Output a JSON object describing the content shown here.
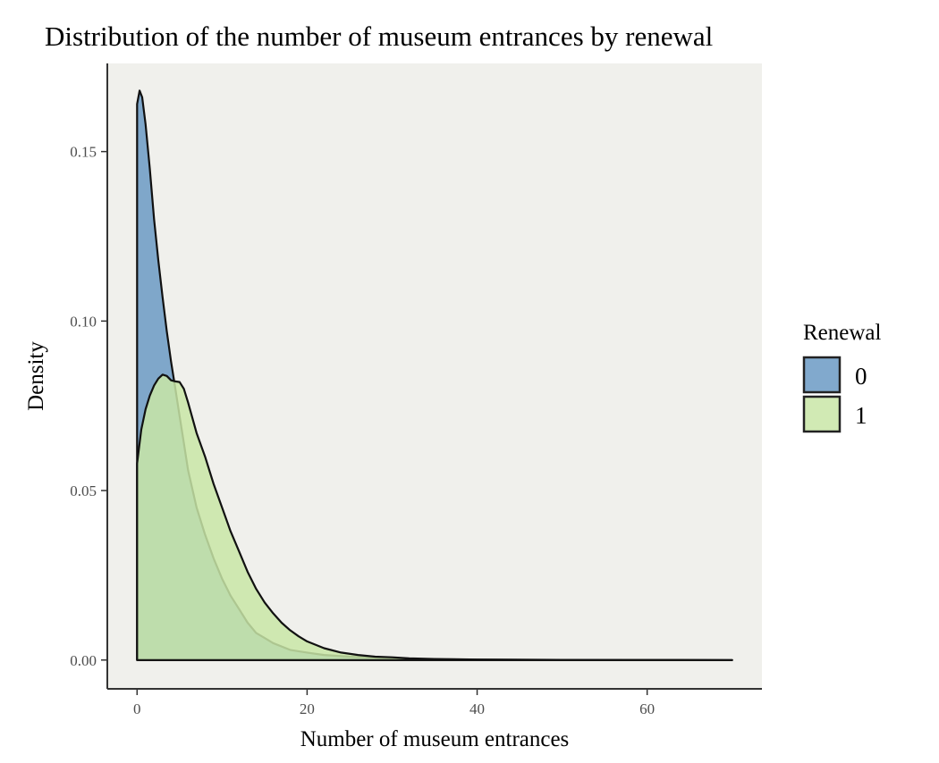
{
  "chart_data": {
    "type": "area",
    "subtype": "density",
    "title": "Distribution of the number of museum entrances by renewal",
    "xlabel": "Number of museum entrances",
    "ylabel": "Density",
    "xlim": [
      -3.5,
      73.5
    ],
    "ylim": [
      -0.0085,
      0.176
    ],
    "x_ticks": [
      0,
      20,
      40,
      60
    ],
    "x_tick_labels": [
      "0",
      "20",
      "40",
      "60"
    ],
    "y_ticks": [
      0.0,
      0.05,
      0.1,
      0.15
    ],
    "y_tick_labels": [
      "0.00",
      "0.05",
      "0.10",
      "0.15"
    ],
    "grid": false,
    "panel_background": "#f0f0ec",
    "legend": {
      "title": "Renewal",
      "position": "right"
    },
    "series": [
      {
        "name": "0",
        "color": "#6b9ac4",
        "opacity": 0.85,
        "points": [
          [
            0,
            0.164
          ],
          [
            0.3,
            0.168
          ],
          [
            0.6,
            0.166
          ],
          [
            1,
            0.158
          ],
          [
            1.5,
            0.145
          ],
          [
            2,
            0.13
          ],
          [
            2.5,
            0.118
          ],
          [
            3,
            0.107
          ],
          [
            3.5,
            0.097
          ],
          [
            4,
            0.088
          ],
          [
            4.5,
            0.08
          ],
          [
            5,
            0.072
          ],
          [
            5.5,
            0.064
          ],
          [
            6,
            0.056
          ],
          [
            7,
            0.045
          ],
          [
            8,
            0.037
          ],
          [
            9,
            0.03
          ],
          [
            10,
            0.024
          ],
          [
            11,
            0.019
          ],
          [
            12,
            0.015
          ],
          [
            13,
            0.011
          ],
          [
            14,
            0.008
          ],
          [
            15,
            0.0065
          ],
          [
            16,
            0.005
          ],
          [
            18,
            0.003
          ],
          [
            20,
            0.0022
          ],
          [
            22,
            0.0015
          ],
          [
            25,
            0.001
          ],
          [
            28,
            0.0007
          ],
          [
            30,
            0.0006
          ],
          [
            32,
            0.0003
          ],
          [
            35,
            0.0002
          ],
          [
            40,
            0.0001
          ],
          [
            45,
            5e-05
          ],
          [
            50,
            2e-05
          ],
          [
            60,
            1e-05
          ],
          [
            70,
            0.0
          ]
        ]
      },
      {
        "name": "1",
        "color": "#c9e6a7",
        "opacity": 0.85,
        "points": [
          [
            0,
            0.058
          ],
          [
            0.5,
            0.068
          ],
          [
            1,
            0.074
          ],
          [
            1.5,
            0.078
          ],
          [
            2,
            0.081
          ],
          [
            2.5,
            0.083
          ],
          [
            3,
            0.0842
          ],
          [
            3.5,
            0.0838
          ],
          [
            4,
            0.0825
          ],
          [
            4.5,
            0.0822
          ],
          [
            5,
            0.082
          ],
          [
            5.5,
            0.08
          ],
          [
            6,
            0.076
          ],
          [
            7,
            0.067
          ],
          [
            8,
            0.06
          ],
          [
            9,
            0.052
          ],
          [
            10,
            0.045
          ],
          [
            11,
            0.038
          ],
          [
            12,
            0.032
          ],
          [
            13,
            0.026
          ],
          [
            14,
            0.021
          ],
          [
            15,
            0.017
          ],
          [
            16,
            0.0138
          ],
          [
            17,
            0.011
          ],
          [
            18,
            0.0088
          ],
          [
            19,
            0.007
          ],
          [
            20,
            0.0055
          ],
          [
            22,
            0.0035
          ],
          [
            24,
            0.0022
          ],
          [
            26,
            0.0015
          ],
          [
            28,
            0.001
          ],
          [
            30,
            0.0008
          ],
          [
            32,
            0.0005
          ],
          [
            35,
            0.0003
          ],
          [
            40,
            0.00015
          ],
          [
            45,
            0.0001
          ],
          [
            50,
            5e-05
          ],
          [
            60,
            2e-05
          ],
          [
            70,
            0.0
          ]
        ]
      }
    ]
  }
}
